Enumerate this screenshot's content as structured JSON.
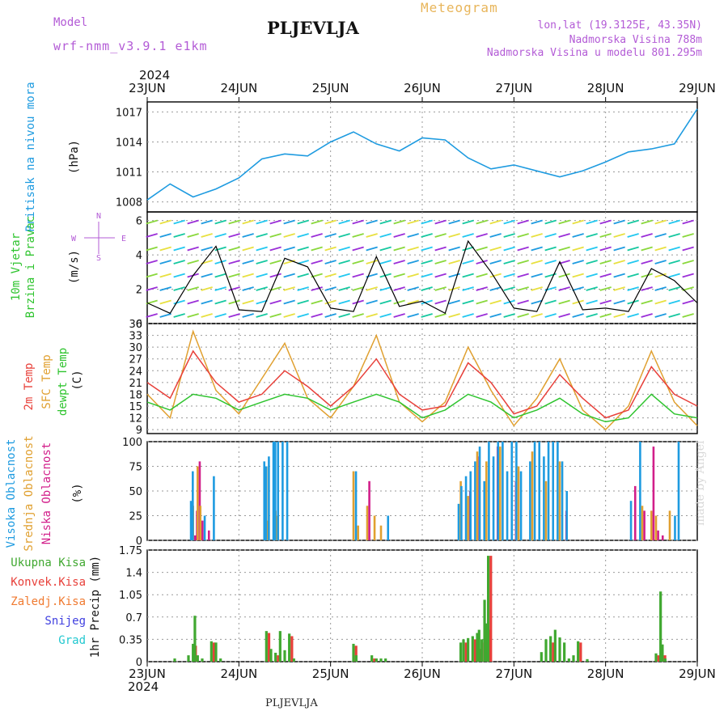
{
  "header": {
    "model_label": "Model",
    "model_name": "wrf-nmm_v3.9.1 e1km",
    "station": "PLJEVLJA",
    "product": "Meteogram",
    "coords": "lon,lat (19.3125E, 43.35N)",
    "elevation": "Nadmorska Visina 788m",
    "model_elevation": "Nadmorska Visina u modelu 801.295m"
  },
  "footer": {
    "station": "PLJEVLJA",
    "credit": "made by Angel"
  },
  "time_axis": {
    "year": "2024",
    "labels": [
      "23JUN",
      "24JUN",
      "25JUN",
      "26JUN",
      "27JUN",
      "28JUN",
      "29JUN"
    ]
  },
  "colors": {
    "pressure": "#1e9be0",
    "wind_calm": "#9b2fd8",
    "temp2m": "#e8403a",
    "sfc": "#e0a030",
    "dew": "#2fc42f",
    "cloud_high": "#1e9be0",
    "cloud_mid": "#e0a030",
    "cloud_low": "#d21f8a",
    "precip_total": "#40a830",
    "precip_conv": "#e8403a"
  },
  "chart_data": [
    {
      "type": "line",
      "panel": "pressure",
      "ylabel_title": "Pritisak na nivou mora",
      "ylabel_unit": "(hPa)",
      "ylim": [
        1007,
        1018
      ],
      "yticks": [
        1008,
        1011,
        1014,
        1017
      ],
      "grid": true,
      "x_days": [
        0,
        0.25,
        0.5,
        0.75,
        1,
        1.25,
        1.5,
        1.75,
        2,
        2.25,
        2.5,
        2.75,
        3,
        3.25,
        3.5,
        3.75,
        4,
        4.25,
        4.5,
        4.75,
        5,
        5.25,
        5.5,
        5.75,
        6
      ],
      "series": [
        {
          "values": [
            1008.2,
            1009.8,
            1008.5,
            1009.3,
            1010.4,
            1012.3,
            1012.8,
            1012.6,
            1014.0,
            1015.0,
            1013.8,
            1013.1,
            1014.4,
            1014.2,
            1012.4,
            1011.3,
            1011.7,
            1011.1,
            1010.5,
            1011.1,
            1012.0,
            1013.0,
            1013.3,
            1013.8,
            1017.3
          ]
        }
      ]
    },
    {
      "type": "line",
      "panel": "wind",
      "ylabel_title": "10m Vjetar Brzina i Pravac",
      "ylabel_unit": "(m/s)",
      "compass": {
        "n": "N",
        "e": "E",
        "w": "W",
        "s": "S"
      },
      "ylim": [
        0,
        6.5
      ],
      "yticks": [
        0,
        2,
        4,
        6
      ],
      "grid": true,
      "x_days": [
        0,
        0.25,
        0.5,
        0.75,
        1,
        1.25,
        1.5,
        1.75,
        2,
        2.25,
        2.5,
        2.75,
        3,
        3.25,
        3.5,
        3.75,
        4,
        4.25,
        4.5,
        4.75,
        5,
        5.25,
        5.5,
        5.75,
        6
      ],
      "series": [
        {
          "name": "speed",
          "values": [
            1.2,
            0.6,
            2.8,
            4.5,
            0.8,
            0.7,
            3.8,
            3.3,
            0.9,
            0.7,
            3.9,
            1.0,
            1.3,
            0.6,
            4.8,
            3.0,
            0.9,
            0.7,
            3.6,
            0.8,
            0.9,
            0.7,
            3.2,
            2.5,
            1.2
          ]
        }
      ]
    },
    {
      "type": "line",
      "panel": "temperature",
      "ylabel_lines": [
        "2m Temp",
        "SFC Temp",
        "dewpt Temp"
      ],
      "ylabel_unit": "(C)",
      "ylim": [
        8,
        36
      ],
      "yticks": [
        9,
        12,
        15,
        18,
        21,
        24,
        27,
        30,
        33,
        36
      ],
      "grid": true,
      "x_days": [
        0,
        0.25,
        0.5,
        0.75,
        1,
        1.25,
        1.5,
        1.75,
        2,
        2.25,
        2.5,
        2.75,
        3,
        3.25,
        3.5,
        3.75,
        4,
        4.25,
        4.5,
        4.75,
        5,
        5.25,
        5.5,
        5.75,
        6
      ],
      "series": [
        {
          "name": "2m Temp",
          "values": [
            21,
            17,
            29,
            21,
            16,
            18,
            24,
            20,
            15,
            20,
            27,
            18,
            14,
            15,
            26,
            21,
            13,
            15,
            23,
            17,
            12,
            14,
            25,
            18,
            15
          ]
        },
        {
          "name": "SFC Temp",
          "values": [
            18,
            12,
            34,
            19,
            13,
            22,
            31,
            17,
            12,
            20,
            33,
            16,
            11,
            16,
            30,
            19,
            10,
            17,
            27,
            14,
            9,
            15,
            29,
            16,
            10
          ]
        },
        {
          "name": "dewpt Temp",
          "values": [
            16,
            14,
            18,
            17,
            14,
            16,
            18,
            17,
            14,
            16,
            18,
            16,
            12,
            14,
            18,
            16,
            12,
            14,
            17,
            13,
            11,
            12,
            18,
            13,
            12
          ]
        }
      ]
    },
    {
      "type": "bar",
      "panel": "clouds",
      "ylabel_lines": [
        "Visoka Oblacnost",
        "Srednja Oblacnost",
        "Niska Oblacnost"
      ],
      "ylabel_unit": "(%)",
      "ylim": [
        0,
        100
      ],
      "yticks": [
        0,
        25,
        50,
        75,
        100
      ],
      "grid": true,
      "x_days": [
        0.5,
        0.52,
        0.55,
        0.58,
        0.65,
        0.75,
        1.3,
        1.32,
        1.35,
        1.4,
        1.42,
        1.45,
        1.5,
        1.55,
        2.25,
        2.3,
        2.4,
        2.48,
        2.55,
        2.65,
        3.42,
        3.45,
        3.5,
        3.55,
        3.6,
        3.65,
        3.7,
        3.75,
        3.8,
        3.85,
        3.9,
        3.95,
        4.0,
        4.05,
        4.1,
        4.2,
        4.25,
        4.3,
        4.35,
        4.4,
        4.45,
        4.5,
        4.55,
        4.6,
        5.3,
        5.4,
        5.5,
        5.55,
        5.6,
        5.7,
        5.78,
        5.82
      ],
      "series": [
        {
          "name": "Visoka Oblacnost",
          "values": [
            40,
            70,
            0,
            0,
            25,
            65,
            80,
            75,
            85,
            100,
            100,
            100,
            100,
            100,
            0,
            70,
            0,
            0,
            0,
            25,
            37,
            55,
            65,
            70,
            80,
            95,
            60,
            100,
            85,
            100,
            100,
            70,
            100,
            100,
            70,
            80,
            100,
            100,
            85,
            100,
            100,
            100,
            80,
            50,
            40,
            100,
            0,
            0,
            0,
            0,
            25,
            100
          ]
        },
        {
          "name": "Srednja Oblacnost",
          "values": [
            35,
            0,
            75,
            35,
            0,
            0,
            75,
            20,
            0,
            30,
            25,
            0,
            0,
            0,
            70,
            15,
            35,
            25,
            15,
            0,
            60,
            0,
            45,
            0,
            90,
            0,
            80,
            0,
            0,
            95,
            0,
            0,
            0,
            75,
            0,
            90,
            0,
            0,
            60,
            0,
            0,
            80,
            0,
            0,
            0,
            35,
            30,
            25,
            0,
            30,
            0,
            0
          ]
        },
        {
          "name": "Niska Oblacnost",
          "values": [
            5,
            30,
            80,
            20,
            10,
            0,
            0,
            0,
            0,
            0,
            0,
            0,
            0,
            0,
            0,
            0,
            60,
            0,
            0,
            0,
            0,
            0,
            50,
            0,
            85,
            0,
            0,
            0,
            95,
            0,
            0,
            0,
            60,
            0,
            0,
            0,
            0,
            0,
            0,
            0,
            0,
            0,
            30,
            0,
            55,
            30,
            95,
            10,
            5,
            0,
            0,
            0
          ]
        }
      ]
    },
    {
      "type": "bar",
      "panel": "precip",
      "ylabel_left": [
        "Ukupna Kisa",
        "Konvek.Kisa",
        "Zaledj.Kisa",
        "Snijeg",
        "Grad"
      ],
      "ylabel_unit": "1hr Precip (mm)",
      "ylim": [
        0,
        1.75
      ],
      "yticks": [
        0,
        0.35,
        0.7,
        1.05,
        1.4,
        1.75
      ],
      "grid": true,
      "x_days": [
        0.3,
        0.45,
        0.5,
        0.52,
        0.55,
        0.6,
        0.7,
        0.75,
        0.8,
        1.3,
        1.35,
        1.4,
        1.45,
        1.5,
        1.55,
        1.6,
        2.25,
        2.28,
        2.45,
        2.5,
        2.55,
        2.6,
        3.42,
        3.45,
        3.5,
        3.55,
        3.6,
        3.62,
        3.65,
        3.68,
        3.7,
        3.72,
        4.3,
        4.35,
        4.4,
        4.45,
        4.5,
        4.55,
        4.6,
        4.65,
        4.7,
        4.8,
        5.55,
        5.6,
        5.62,
        5.65
      ],
      "series": [
        {
          "name": "Ukupna Kisa",
          "values": [
            0.05,
            0.1,
            0.28,
            0.72,
            0.1,
            0.05,
            0.32,
            0.3,
            0.05,
            0.48,
            0.2,
            0.14,
            0.48,
            0.18,
            0.44,
            0.05,
            0.28,
            0.1,
            0.1,
            0.05,
            0.05,
            0.05,
            0.3,
            0.35,
            0.37,
            0.4,
            0.45,
            0.5,
            0.35,
            0.97,
            0.6,
            1.66,
            0.15,
            0.35,
            0.4,
            0.5,
            0.38,
            0.3,
            0.05,
            0.1,
            0.32,
            0.04,
            0.13,
            1.1,
            0.27,
            0.05
          ]
        },
        {
          "name": "Konvek.Kisa",
          "values": [
            0,
            0,
            0.25,
            0,
            0,
            0,
            0.3,
            0,
            0,
            0.45,
            0,
            0.1,
            0,
            0,
            0.4,
            0,
            0.25,
            0,
            0.05,
            0,
            0,
            0,
            0,
            0.3,
            0,
            0.35,
            0.2,
            0,
            0.3,
            0,
            0.5,
            1.66,
            0,
            0,
            0.3,
            0,
            0,
            0,
            0,
            0,
            0.3,
            0,
            0.1,
            0,
            0.1,
            0
          ]
        }
      ]
    }
  ]
}
